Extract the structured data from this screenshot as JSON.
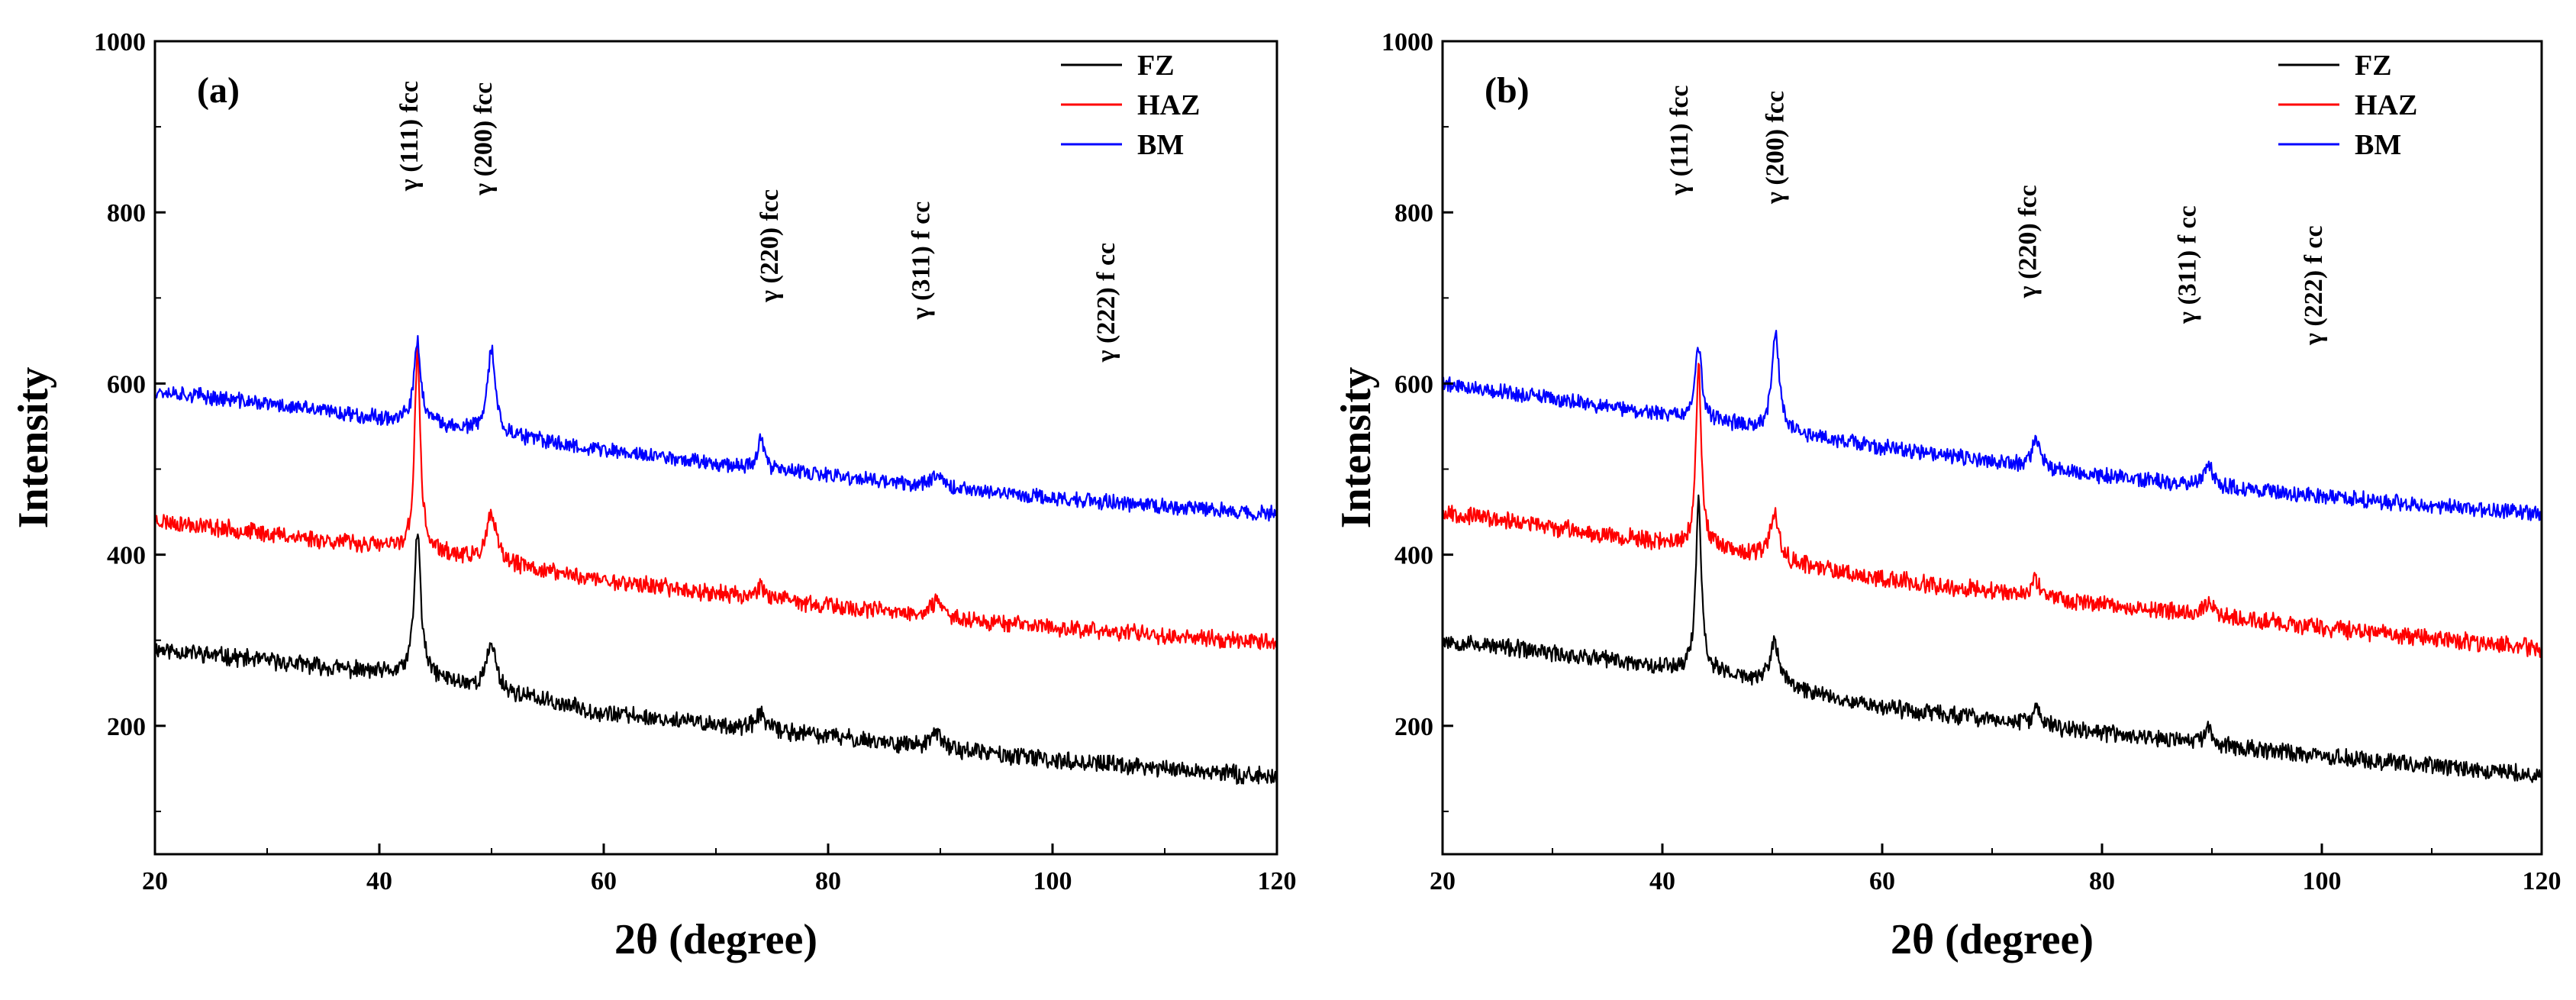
{
  "chart_data": [
    {
      "type": "line",
      "panel_label": "(a)",
      "xlabel": "2θ (degree)",
      "ylabel": "Intensity",
      "xlim": [
        20,
        120
      ],
      "ylim": [
        50,
        1000
      ],
      "xticks": [
        20,
        40,
        60,
        80,
        100,
        120
      ],
      "yticks": [
        200,
        400,
        600,
        800,
        1000
      ],
      "legend_position": "top-right",
      "series": [
        {
          "name": "FZ",
          "color": "#000000",
          "noise": 9,
          "seed": 11,
          "baseline": [
            [
              20,
              290
            ],
            [
              45,
              255
            ],
            [
              60,
              215
            ],
            [
              80,
              188
            ],
            [
              100,
              160
            ],
            [
              120,
              140
            ]
          ],
          "peaks": [
            [
              43.4,
              170,
              0.35
            ],
            [
              50.0,
              55,
              0.5
            ],
            [
              74.0,
              20,
              0.4
            ],
            [
              89.7,
              18,
              0.5
            ]
          ]
        },
        {
          "name": "HAZ",
          "color": "#ff0000",
          "noise": 9,
          "seed": 23,
          "baseline": [
            [
              20,
              440
            ],
            [
              45,
              402
            ],
            [
              60,
              370
            ],
            [
              80,
              340
            ],
            [
              100,
              315
            ],
            [
              120,
              297
            ]
          ],
          "peaks": [
            [
              43.4,
              235,
              0.3
            ],
            [
              50.0,
              55,
              0.5
            ],
            [
              74.0,
              15,
              0.5
            ],
            [
              89.7,
              18,
              0.5
            ]
          ]
        },
        {
          "name": "BM",
          "color": "#0000ff",
          "noise": 8,
          "seed": 37,
          "baseline": [
            [
              20,
              592
            ],
            [
              45,
              552
            ],
            [
              60,
              522
            ],
            [
              80,
              492
            ],
            [
              100,
              466
            ],
            [
              120,
              447
            ]
          ],
          "peaks": [
            [
              43.4,
              95,
              0.35
            ],
            [
              50.0,
              100,
              0.4
            ],
            [
              74.0,
              40,
              0.3
            ],
            [
              89.7,
              18,
              0.5
            ]
          ]
        }
      ],
      "annotations": [
        {
          "text": "γ  (111) fcc",
          "x": 43.4,
          "y": 825
        },
        {
          "text": "γ (200) fcc",
          "x": 50.0,
          "y": 820
        },
        {
          "text": "γ  (220) fcc",
          "x": 75.5,
          "y": 695
        },
        {
          "text": "γ (311) f cc",
          "x": 89.0,
          "y": 675
        },
        {
          "text": "γ (222) f cc",
          "x": 105.5,
          "y": 625
        }
      ]
    },
    {
      "type": "line",
      "panel_label": "(b)",
      "xlabel": "2θ (degree)",
      "ylabel": "Intensity",
      "xlim": [
        20,
        120
      ],
      "ylim": [
        50,
        1000
      ],
      "xticks": [
        20,
        40,
        60,
        80,
        100,
        120
      ],
      "yticks": [
        200,
        400,
        600,
        800,
        1000
      ],
      "legend_position": "top-right",
      "series": [
        {
          "name": "FZ",
          "color": "#000000",
          "noise": 9,
          "seed": 53,
          "baseline": [
            [
              20,
              300
            ],
            [
              45,
              262
            ],
            [
              60,
              222
            ],
            [
              80,
              192
            ],
            [
              100,
              165
            ],
            [
              120,
              142
            ]
          ],
          "peaks": [
            [
              43.3,
              200,
              0.3
            ],
            [
              50.2,
              50,
              0.5
            ],
            [
              74.0,
              20,
              0.4
            ],
            [
              89.7,
              15,
              0.5
            ]
          ]
        },
        {
          "name": "HAZ",
          "color": "#ff0000",
          "noise": 9,
          "seed": 67,
          "baseline": [
            [
              20,
              450
            ],
            [
              45,
              405
            ],
            [
              60,
              372
            ],
            [
              80,
              342
            ],
            [
              100,
              315
            ],
            [
              120,
              290
            ]
          ],
          "peaks": [
            [
              43.3,
              210,
              0.3
            ],
            [
              50.2,
              55,
              0.5
            ],
            [
              74.0,
              20,
              0.4
            ],
            [
              89.7,
              15,
              0.5
            ]
          ]
        },
        {
          "name": "BM",
          "color": "#0000ff",
          "noise": 8,
          "seed": 79,
          "baseline": [
            [
              20,
              600
            ],
            [
              45,
              555
            ],
            [
              60,
              525
            ],
            [
              80,
              492
            ],
            [
              100,
              468
            ],
            [
              120,
              447
            ]
          ],
          "peaks": [
            [
              43.3,
              85,
              0.35
            ],
            [
              50.3,
              115,
              0.4
            ],
            [
              74.0,
              35,
              0.4
            ],
            [
              89.7,
              25,
              0.5
            ]
          ]
        }
      ],
      "annotations": [
        {
          "text": "γ  (111) fcc",
          "x": 42.3,
          "y": 820
        },
        {
          "text": "γ (200) fcc",
          "x": 51.0,
          "y": 810
        },
        {
          "text": "γ  (220) fcc",
          "x": 74.0,
          "y": 700
        },
        {
          "text": "γ (311) f cc",
          "x": 88.5,
          "y": 670
        },
        {
          "text": "γ (222) f cc",
          "x": 100.0,
          "y": 645
        }
      ]
    }
  ]
}
